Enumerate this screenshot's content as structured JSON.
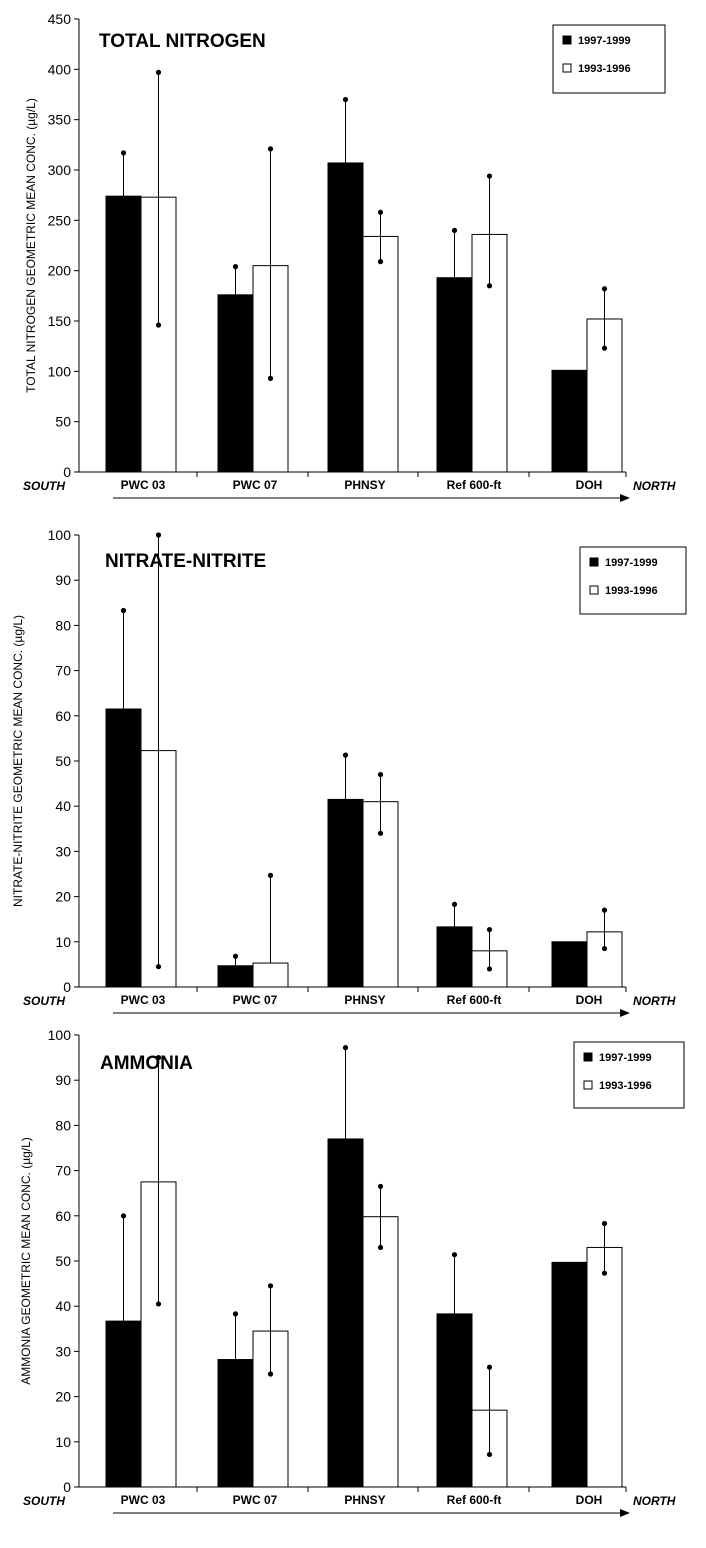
{
  "chart_data": [
    {
      "type": "bar",
      "title": "TOTAL NITROGEN",
      "ylabel": "TOTAL NITROGEN GEOMETRIC MEAN CONC. (µg/L)",
      "ylim": [
        0,
        450
      ],
      "yticks": [
        0,
        50,
        100,
        150,
        200,
        250,
        300,
        350,
        400,
        450
      ],
      "categories": [
        "PWC 03",
        "PWC 07",
        "PHNSY",
        "Ref 600-ft",
        "DOH"
      ],
      "direction_left": "SOUTH",
      "direction_right": "NORTH",
      "legend_position": "top-right",
      "series": [
        {
          "name": "1997-1999",
          "color": "#000000",
          "values": [
            274,
            176,
            307,
            193,
            101
          ],
          "error_ends": [
            317,
            204,
            370,
            240,
            101
          ]
        },
        {
          "name": "1993-1996",
          "color": "#ffffff",
          "values": [
            273,
            205,
            234,
            236,
            152
          ],
          "error_ends": [
            397,
            321,
            258,
            294,
            182
          ],
          "error_lows": [
            146,
            93,
            209,
            185,
            123
          ]
        }
      ]
    },
    {
      "type": "bar",
      "title": "NITRATE-NITRITE",
      "ylabel": "NITRATE-NITRITE GEOMETRIC MEAN CONC. (µg/L)",
      "ylim": [
        0,
        100
      ],
      "yticks": [
        0,
        10,
        20,
        30,
        40,
        50,
        60,
        70,
        80,
        90,
        100
      ],
      "categories": [
        "PWC 03",
        "PWC 07",
        "PHNSY",
        "Ref 600-ft",
        "DOH"
      ],
      "direction_left": "SOUTH",
      "direction_right": "NORTH",
      "legend_position": "top-right",
      "series": [
        {
          "name": "1997-1999",
          "color": "#000000",
          "values": [
            61.5,
            4.7,
            41.5,
            13.3,
            10
          ],
          "error_ends": [
            83.3,
            6.8,
            51.3,
            18.3,
            10
          ]
        },
        {
          "name": "1993-1996",
          "color": "#ffffff",
          "values": [
            52.3,
            5.3,
            41,
            8,
            12.2
          ],
          "error_ends": [
            100,
            24.7,
            47,
            12.7,
            17
          ],
          "error_lows": [
            4.5,
            5.3,
            34,
            4,
            8.5
          ]
        }
      ]
    },
    {
      "type": "bar",
      "title": "AMMONIA",
      "ylabel": "AMMONIA GEOMETRIC MEAN CONC. (µg/L)",
      "ylim": [
        0,
        100
      ],
      "yticks": [
        0,
        10,
        20,
        30,
        40,
        50,
        60,
        70,
        80,
        90,
        100
      ],
      "categories": [
        "PWC 03",
        "PWC 07",
        "PHNSY",
        "Ref 600-ft",
        "DOH"
      ],
      "direction_left": "SOUTH",
      "direction_right": "NORTH",
      "legend_position": "top-right",
      "series": [
        {
          "name": "1997-1999",
          "color": "#000000",
          "values": [
            36.7,
            28.2,
            77,
            38.3,
            49.7
          ],
          "error_ends": [
            60,
            38.3,
            97.2,
            51.4,
            49.7
          ]
        },
        {
          "name": "1993-1996",
          "color": "#ffffff",
          "values": [
            67.5,
            34.5,
            59.8,
            17,
            53
          ],
          "error_ends": [
            95,
            44.5,
            66.5,
            26.5,
            58.3
          ],
          "error_lows": [
            40.5,
            25,
            53,
            7.2,
            47.3
          ]
        }
      ]
    }
  ]
}
